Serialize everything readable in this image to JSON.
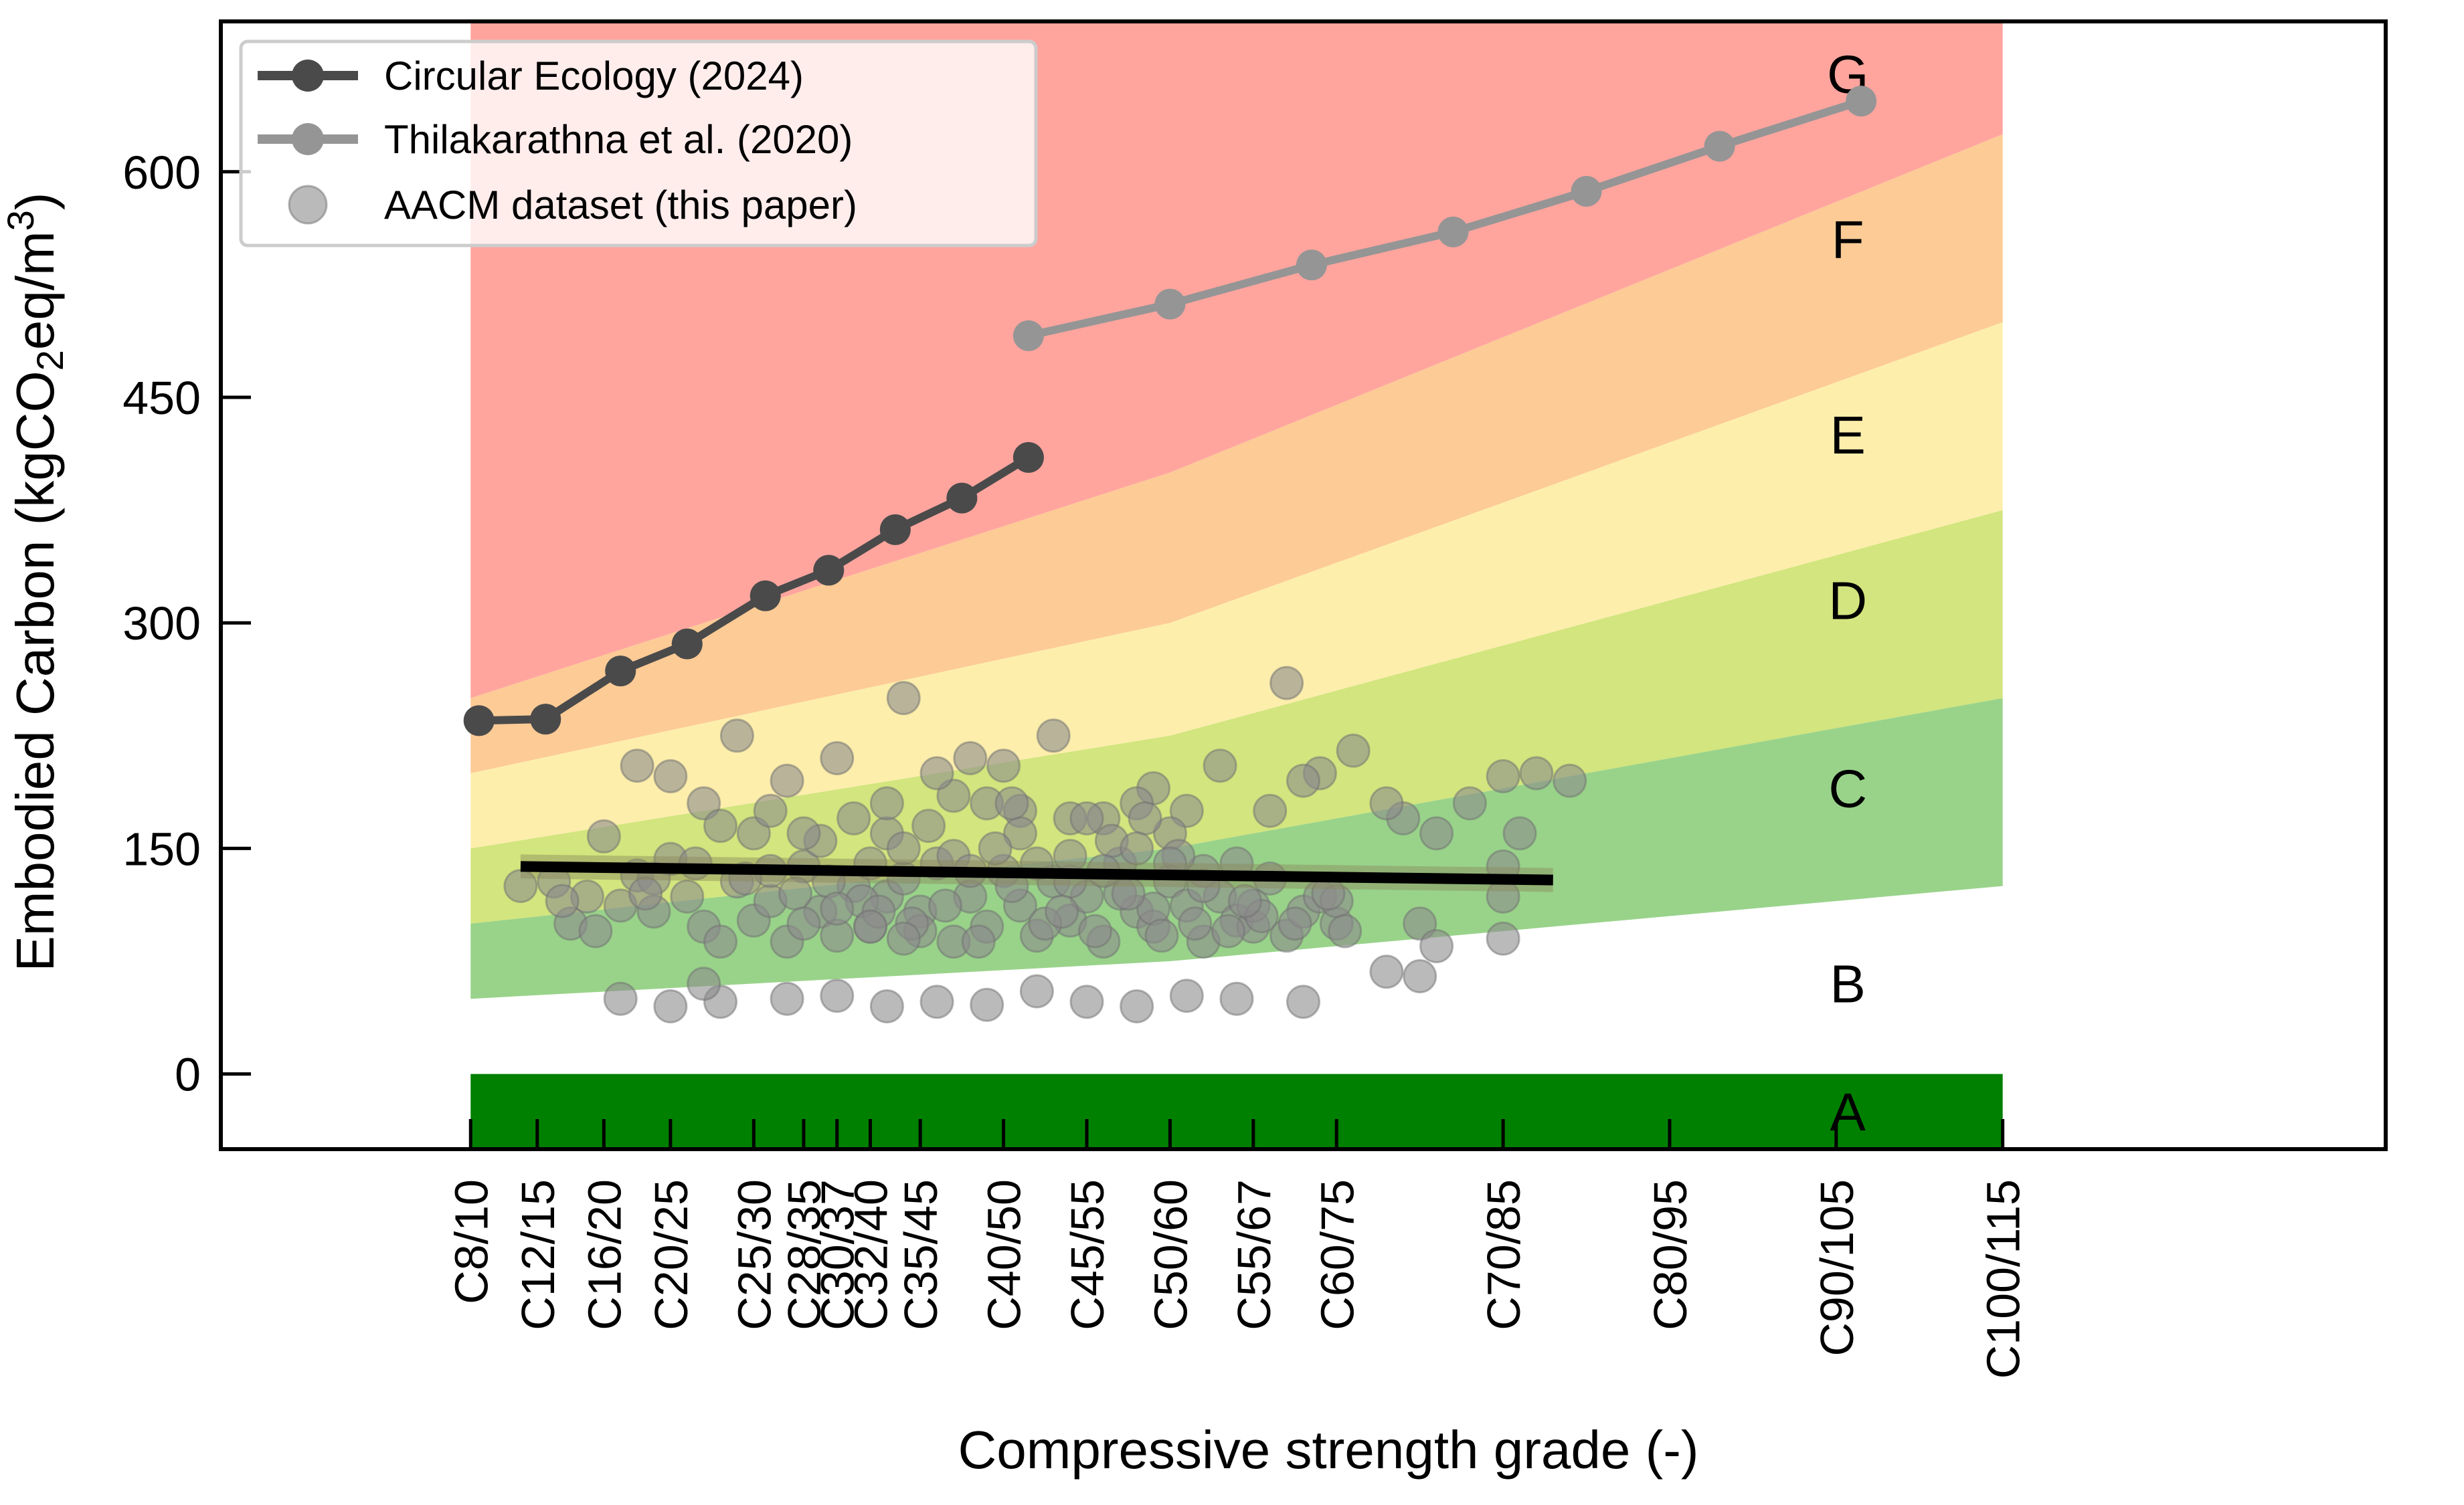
{
  "chart_data": {
    "type": "line",
    "title": "",
    "xlabel": "Compressive strength grade (-)",
    "ylabel": "Embodied Carbon (kgCO₂eq/m³)",
    "ylim": [
      -50,
      700
    ],
    "xlim": [
      -1.5,
      11.5
    ],
    "yticks": [
      0,
      150,
      300,
      450,
      600
    ],
    "grades": [
      {
        "label": "C8/10",
        "x": 0
      },
      {
        "label": "C12/15",
        "x": 0.4
      },
      {
        "label": "C16/20",
        "x": 0.8
      },
      {
        "label": "C20/25",
        "x": 1.2
      },
      {
        "label": "C25/30",
        "x": 1.7
      },
      {
        "label": "C28/35",
        "x": 2.0
      },
      {
        "label": "C30/37",
        "x": 2.2
      },
      {
        "label": "C32/40",
        "x": 2.4
      },
      {
        "label": "C35/45",
        "x": 2.7
      },
      {
        "label": "C40/50",
        "x": 3.2
      },
      {
        "label": "C45/55",
        "x": 3.7
      },
      {
        "label": "C50/60",
        "x": 4.2
      },
      {
        "label": "C55/67",
        "x": 4.7
      },
      {
        "label": "C60/75",
        "x": 5.2
      },
      {
        "label": "C70/85",
        "x": 6.2
      },
      {
        "label": "C80/95",
        "x": 7.2
      },
      {
        "label": "C90/105",
        "x": 8.2
      },
      {
        "label": "C100/115",
        "x": 9.2
      }
    ],
    "bands": {
      "x": [
        0,
        4.2,
        9.2
      ],
      "boundaries": [
        [
          0,
          0,
          0
        ],
        [
          50,
          75,
          125
        ],
        [
          100,
          150,
          250
        ],
        [
          150,
          225,
          375
        ],
        [
          200,
          300,
          500
        ],
        [
          250,
          400,
          625
        ],
        [
          700,
          700,
          700
        ]
      ],
      "letters": [
        "A",
        "B",
        "C",
        "D",
        "E",
        "F",
        "G"
      ],
      "letter_y": [
        -25,
        60,
        190,
        315,
        425,
        555,
        665
      ],
      "letter_x": 8.27,
      "colors": [
        "#008000",
        "#99d38a",
        "#d3e57e",
        "#fdeeac",
        "#fdcb96",
        "#ffa59e",
        "#eb6e71"
      ]
    },
    "series": [
      {
        "name": "Circular Ecology (2024)",
        "color": "#4a4a4a",
        "x": [
          0.05,
          0.45,
          0.9,
          1.3,
          1.77,
          2.15,
          2.55,
          2.95,
          3.35
        ],
        "y": [
          235,
          236,
          268,
          286,
          318,
          335,
          362,
          383,
          410
        ]
      },
      {
        "name": "Thilakarathna et al. (2020)",
        "color": "#959595",
        "x": [
          3.35,
          4.2,
          5.05,
          5.9,
          6.7,
          7.5,
          8.35
        ],
        "y": [
          491,
          512,
          538,
          560,
          587,
          617,
          647
        ]
      }
    ],
    "trendline": {
      "x": [
        0.3,
        6.5
      ],
      "y": [
        138,
        129
      ],
      "color": "#000000"
    },
    "scatter": {
      "name": "AACM dataset (this paper)",
      "color": "#8c8c8c",
      "points": [
        [
          0.3,
          125
        ],
        [
          0.5,
          128
        ],
        [
          0.6,
          100
        ],
        [
          0.7,
          118
        ],
        [
          0.8,
          158
        ],
        [
          0.9,
          112
        ],
        [
          1.0,
          132
        ],
        [
          1.1,
          108
        ],
        [
          1.2,
          143
        ],
        [
          1.3,
          118
        ],
        [
          1.4,
          98
        ],
        [
          1.5,
          88
        ],
        [
          1.6,
          128
        ],
        [
          1.7,
          102
        ],
        [
          1.8,
          115
        ],
        [
          1.9,
          88
        ],
        [
          2.0,
          138
        ],
        [
          2.1,
          108
        ],
        [
          2.2,
          92
        ],
        [
          2.3,
          125
        ],
        [
          2.4,
          98
        ],
        [
          2.5,
          118
        ],
        [
          2.6,
          130
        ],
        [
          2.7,
          108
        ],
        [
          2.8,
          140
        ],
        [
          2.9,
          88
        ],
        [
          3.0,
          118
        ],
        [
          3.1,
          98
        ],
        [
          3.2,
          135
        ],
        [
          3.3,
          112
        ],
        [
          3.4,
          92
        ],
        [
          3.5,
          128
        ],
        [
          3.6,
          102
        ],
        [
          3.7,
          118
        ],
        [
          3.8,
          88
        ],
        [
          3.9,
          140
        ],
        [
          4.0,
          108
        ],
        [
          4.1,
          98
        ],
        [
          4.2,
          128
        ],
        [
          4.3,
          112
        ],
        [
          4.4,
          88
        ],
        [
          4.5,
          118
        ],
        [
          4.6,
          102
        ],
        [
          4.7,
          98
        ],
        [
          4.8,
          130
        ],
        [
          4.9,
          92
        ],
        [
          5.0,
          108
        ],
        [
          5.1,
          118
        ],
        [
          5.2,
          100
        ],
        [
          0.9,
          50
        ],
        [
          1.2,
          45
        ],
        [
          1.5,
          48
        ],
        [
          1.9,
          50
        ],
        [
          2.2,
          52
        ],
        [
          2.5,
          45
        ],
        [
          2.8,
          48
        ],
        [
          3.1,
          46
        ],
        [
          3.4,
          55
        ],
        [
          3.7,
          48
        ],
        [
          4.0,
          45
        ],
        [
          4.3,
          52
        ],
        [
          4.6,
          50
        ],
        [
          5.0,
          48
        ],
        [
          5.5,
          68
        ],
        [
          5.7,
          65
        ],
        [
          1.0,
          205
        ],
        [
          1.2,
          198
        ],
        [
          1.6,
          225
        ],
        [
          1.9,
          195
        ],
        [
          2.2,
          210
        ],
        [
          2.6,
          250
        ],
        [
          2.9,
          185
        ],
        [
          3.2,
          205
        ],
        [
          3.5,
          225
        ],
        [
          3.8,
          170
        ],
        [
          4.1,
          190
        ],
        [
          4.5,
          205
        ],
        [
          4.9,
          260
        ],
        [
          5.1,
          200
        ],
        [
          5.3,
          215
        ],
        [
          5.6,
          170
        ],
        [
          5.8,
          160
        ],
        [
          6.0,
          180
        ],
        [
          6.2,
          198
        ],
        [
          6.4,
          200
        ],
        [
          6.6,
          195
        ],
        [
          6.3,
          160
        ],
        [
          2.8,
          200
        ],
        [
          3.0,
          210
        ],
        [
          3.1,
          180
        ],
        [
          2.3,
          170
        ],
        [
          2.5,
          160
        ],
        [
          3.3,
          175
        ],
        [
          3.6,
          170
        ],
        [
          4.0,
          180
        ],
        [
          4.3,
          175
        ],
        [
          4.8,
          175
        ],
        [
          5.5,
          180
        ],
        [
          5.7,
          100
        ],
        [
          5.8,
          85
        ],
        [
          6.2,
          138
        ],
        [
          6.2,
          118
        ],
        [
          6.2,
          90
        ],
        [
          1.4,
          60
        ],
        [
          2.1,
          155
        ],
        [
          2.4,
          140
        ],
        [
          2.5,
          180
        ],
        [
          2.7,
          95
        ],
        [
          2.9,
          145
        ],
        [
          3.0,
          135
        ],
        [
          3.3,
          160
        ],
        [
          3.6,
          128
        ],
        [
          3.7,
          170
        ],
        [
          3.9,
          120
        ],
        [
          4.1,
          110
        ],
        [
          4.2,
          160
        ],
        [
          4.4,
          135
        ],
        [
          4.7,
          112
        ],
        [
          4.95,
          100
        ],
        [
          5.0,
          195
        ],
        [
          5.2,
          115
        ],
        [
          1.4,
          180
        ],
        [
          1.5,
          165
        ],
        [
          1.7,
          160
        ],
        [
          1.8,
          175
        ],
        [
          2.0,
          160
        ],
        [
          2.6,
          150
        ],
        [
          2.75,
          165
        ],
        [
          3.15,
          150
        ],
        [
          3.25,
          180
        ],
        [
          3.85,
          155
        ],
        [
          4.05,
          170
        ],
        [
          4.25,
          145
        ],
        [
          4.6,
          140
        ],
        [
          5.25,
          95
        ],
        [
          1.1,
          130
        ],
        [
          1.8,
          135
        ],
        [
          2.35,
          115
        ],
        [
          2.65,
          100
        ],
        [
          3.05,
          88
        ],
        [
          3.45,
          100
        ],
        [
          3.75,
          95
        ],
        [
          4.15,
          92
        ],
        [
          4.55,
          95
        ],
        [
          4.75,
          105
        ],
        [
          0.55,
          115
        ],
        [
          0.75,
          95
        ],
        [
          1.05,
          120
        ],
        [
          1.35,
          140
        ],
        [
          1.65,
          130
        ],
        [
          1.95,
          120
        ],
        [
          2.15,
          128
        ],
        [
          2.45,
          108
        ],
        [
          2.85,
          112
        ],
        [
          3.25,
          125
        ],
        [
          3.55,
          108
        ],
        [
          3.95,
          120
        ],
        [
          4.35,
          100
        ],
        [
          4.65,
          115
        ],
        [
          5.15,
          120
        ],
        [
          2.0,
          100
        ],
        [
          2.2,
          110
        ],
        [
          2.4,
          98
        ],
        [
          2.6,
          90
        ],
        [
          3.4,
          140
        ],
        [
          3.6,
          145
        ],
        [
          3.8,
          135
        ],
        [
          4.0,
          150
        ],
        [
          4.2,
          140
        ],
        [
          4.4,
          125
        ]
      ]
    },
    "legend": {
      "position": "top-left"
    }
  }
}
